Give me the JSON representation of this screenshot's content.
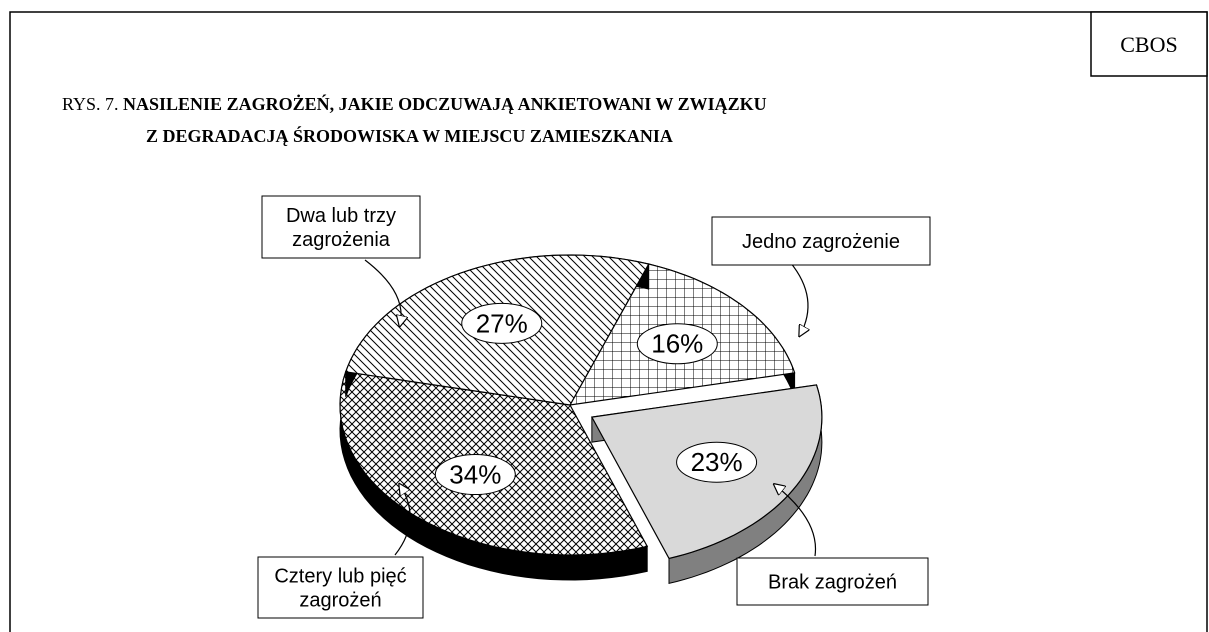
{
  "source": "CBOS",
  "figure_label": "RYS. 7.",
  "chart_data": {
    "type": "pie",
    "title": [
      "NASILENIE ZAGROŻEŃ, JAKIE ODCZUWAJĄ ANKIETOWANI W ZWIĄZKU",
      "Z  DEGRADACJĄ ŚRODOWISKA W MIEJSCU ZAMIESZKANIA"
    ],
    "categories": [
      "Jedno zagrożenie",
      "Brak zagrożeń",
      "Cztery lub pięć\nzagrożeń",
      "Dwa lub trzy\nzagrożenia"
    ],
    "values": [
      16,
      23,
      34,
      27
    ],
    "value_labels": [
      "16%",
      "23%",
      "34%",
      "27%"
    ],
    "colors": [
      "#ffffff",
      "#d9d9d9",
      "#ffffff",
      "#ffffff"
    ],
    "patterns": [
      "grid",
      "solid",
      "crosshatch",
      "hatch"
    ],
    "exploded": [
      false,
      true,
      false,
      false
    ]
  }
}
